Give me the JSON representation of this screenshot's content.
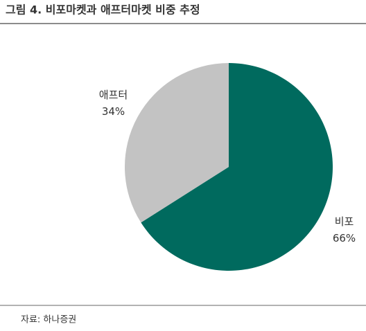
{
  "chart_data": {
    "type": "pie",
    "title": "그림 4. 비포마켓과 애프터마켓 비중 추정",
    "categories": [
      "비포",
      "애프터"
    ],
    "values": [
      66,
      34
    ],
    "value_labels": [
      "66%",
      "34%"
    ],
    "colors": [
      "#006a5e",
      "#c3c3c3"
    ],
    "source": "자료: 하나증권"
  }
}
